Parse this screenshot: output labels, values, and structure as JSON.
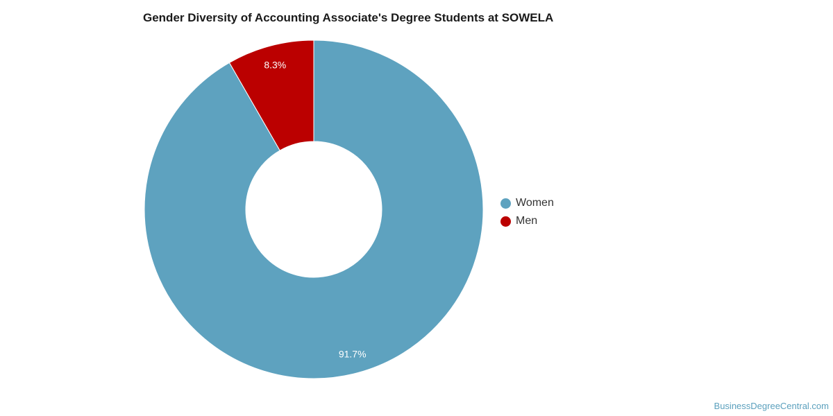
{
  "chart_data": {
    "type": "pie",
    "title": "Gender Diversity of Accounting Associate's Degree Students at SOWELA",
    "categories": [
      "Women",
      "Men"
    ],
    "values": [
      91.7,
      8.3
    ],
    "labels": [
      "91.7%",
      "8.3%"
    ],
    "colors": [
      "#5ea2bf",
      "#bb0000"
    ],
    "donut": true,
    "legend": "right"
  },
  "watermark": "BusinessDegreeCentral.com"
}
